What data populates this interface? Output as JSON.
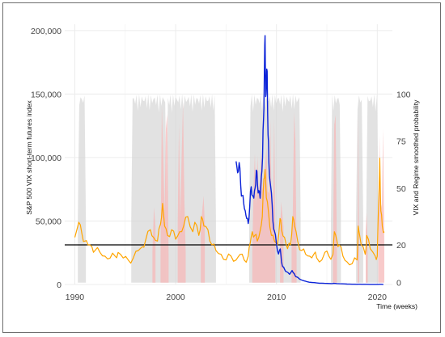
{
  "chart_data": {
    "type": "line",
    "xlabel": "Time (weeks)",
    "ylabel_left": "S&P 500 VIX short-term futures index",
    "ylabel_right": "VIX and Regime smoothed probability",
    "x_range": [
      1989,
      2021.5
    ],
    "x_ticks": [
      1990,
      2000,
      2010,
      2020
    ],
    "y_left_range": [
      0,
      205000
    ],
    "y_left_ticks": [
      0,
      50000,
      100000,
      150000,
      200000
    ],
    "y_left_tick_labels": [
      "0",
      "50,000",
      "100,000",
      "150,000",
      "200,000"
    ],
    "y_right_range": [
      -1,
      137
    ],
    "y_right_ticks": [
      0,
      20,
      50,
      75,
      100
    ],
    "y_right_tick_labels": [
      "0",
      "20",
      "50",
      "75",
      "100"
    ],
    "reference_line": {
      "value": 20,
      "axis": "right",
      "color": "#000000"
    },
    "grid": true,
    "colors": {
      "futures_index": "#0a22d8",
      "vix": "#ffa500",
      "regime_gray": "#d3d3d3",
      "regime_pink": "#f6b8b8"
    },
    "series": [
      {
        "axis": "left",
        "x": [
          2006.0,
          2006.15,
          2006.3,
          2006.45,
          2006.6,
          2006.75,
          2006.9,
          2007.05,
          2007.2,
          2007.35,
          2007.5,
          2007.62,
          2007.75,
          2007.88,
          2008.0,
          2008.12,
          2008.25,
          2008.38,
          2008.5,
          2008.62,
          2008.72,
          2008.8,
          2008.87,
          2008.93,
          2009.0,
          2009.08,
          2009.17,
          2009.25,
          2009.35,
          2009.5,
          2009.65,
          2009.8,
          2010.0,
          2010.2,
          2010.38,
          2010.5,
          2010.62,
          2010.8,
          2011.0,
          2011.3,
          2011.55,
          2011.7,
          2011.85,
          2012.0,
          2012.25,
          2012.5,
          2012.75,
          2013.0,
          2013.5,
          2014.0,
          2014.5,
          2015.0,
          2015.5,
          2015.65,
          2016.0,
          2016.5,
          2017.0,
          2017.5,
          2018.0,
          2018.1,
          2018.5,
          2019.0,
          2019.5,
          2020.0,
          2020.2,
          2020.4,
          2020.6
        ],
        "y": [
          97000,
          88000,
          96000,
          78000,
          70000,
          64000,
          58000,
          52000,
          48000,
          62000,
          77000,
          70000,
          68000,
          76000,
          90000,
          78000,
          74000,
          68000,
          85000,
          100000,
          130000,
          165000,
          196000,
          148000,
          157000,
          168000,
          118000,
          96000,
          82000,
          72000,
          50000,
          42000,
          32000,
          24000,
          28000,
          18000,
          14000,
          12000,
          10000,
          8000,
          11000,
          9000,
          7000,
          6000,
          4500,
          3500,
          2800,
          2200,
          1600,
          1200,
          1000,
          800,
          700,
          900,
          700,
          500,
          300,
          200,
          150,
          200,
          150,
          100,
          80,
          60,
          120,
          100,
          80
        ]
      },
      {
        "axis": "right",
        "x": [
          1990.0,
          1990.4,
          1990.7,
          1991.0,
          1991.3,
          1991.7,
          1992.0,
          1992.5,
          1993.0,
          1993.5,
          1994.0,
          1994.3,
          1994.8,
          1995.3,
          1995.8,
          1996.3,
          1996.7,
          1997.0,
          1997.5,
          1997.8,
          1998.2,
          1998.5,
          1998.7,
          1998.9,
          1999.2,
          1999.6,
          2000.0,
          2000.4,
          2000.8,
          2001.2,
          2001.7,
          2001.9,
          2002.3,
          2002.55,
          2002.8,
          2003.2,
          2003.6,
          2004.0,
          2004.5,
          2005.0,
          2005.5,
          2006.0,
          2006.4,
          2006.8,
          2007.2,
          2007.4,
          2007.6,
          2007.85,
          2008.1,
          2008.4,
          2008.6,
          2008.75,
          2008.87,
          2009.0,
          2009.2,
          2009.5,
          2009.8,
          2010.1,
          2010.35,
          2010.5,
          2010.8,
          2011.1,
          2011.4,
          2011.62,
          2011.8,
          2012.1,
          2012.5,
          2012.9,
          2013.3,
          2013.7,
          2014.0,
          2014.5,
          2014.8,
          2015.2,
          2015.6,
          2015.75,
          2016.0,
          2016.2,
          2016.6,
          2017.0,
          2017.5,
          2018.0,
          2018.1,
          2018.4,
          2018.8,
          2018.95,
          2019.3,
          2019.8,
          2020.0,
          2020.18,
          2020.25,
          2020.35,
          2020.5,
          2020.7
        ],
        "y": [
          24,
          32,
          26,
          22,
          20,
          19,
          17,
          16,
          14,
          13,
          14,
          16,
          13,
          12,
          13,
          17,
          19,
          22,
          28,
          24,
          22,
          31,
          42,
          30,
          25,
          28,
          23,
          27,
          30,
          35,
          27,
          32,
          25,
          35,
          30,
          28,
          20,
          17,
          15,
          12,
          14,
          12,
          15,
          12,
          14,
          21,
          27,
          25,
          22,
          28,
          35,
          55,
          60,
          45,
          38,
          25,
          22,
          20,
          34,
          28,
          24,
          18,
          20,
          35,
          30,
          22,
          17,
          15,
          14,
          15,
          13,
          12,
          16,
          14,
          15,
          27,
          22,
          20,
          14,
          11,
          10,
          12,
          30,
          20,
          15,
          25,
          18,
          14,
          14,
          50,
          66,
          38,
          30,
          27
        ]
      }
    ],
    "regime_gray": [
      [
        1990.3,
        1991.1
      ],
      [
        1995.6,
        1999.1
      ],
      [
        1999.1,
        2004.0
      ],
      [
        2007.3,
        2012.4
      ],
      [
        2015.4,
        2016.4
      ],
      [
        2017.9,
        2018.6
      ],
      [
        2018.9,
        2020.1
      ]
    ],
    "regime_pink": [
      [
        1997.7,
        1998.0
      ],
      [
        1998.5,
        1999.3
      ],
      [
        2000.2,
        2001.0
      ],
      [
        2002.5,
        2002.9
      ],
      [
        2007.6,
        2009.9
      ],
      [
        2010.35,
        2010.7
      ],
      [
        2011.5,
        2012.0
      ],
      [
        2015.6,
        2016.0
      ],
      [
        2018.05,
        2018.2
      ],
      [
        2018.85,
        2019.05
      ],
      [
        2020.1,
        2020.7
      ]
    ]
  }
}
